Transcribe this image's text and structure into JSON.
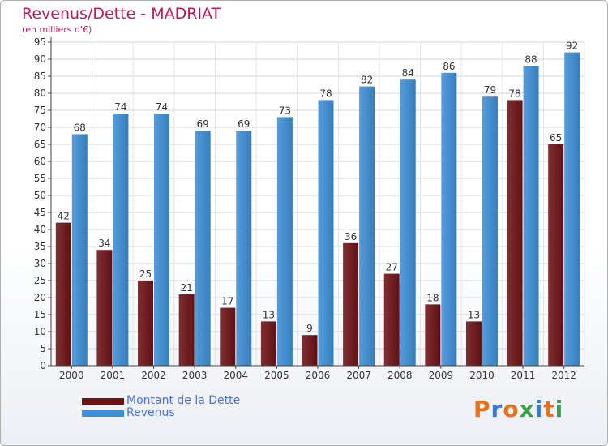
{
  "header": {
    "title": "Revenus/Dette - MADRIAT",
    "subtitle": "(en milliers d'€)"
  },
  "colors": {
    "title": "#c2185b",
    "dette": "#6e1216",
    "revenus": "#3d8fd6",
    "legend_text": "#4a6fe0"
  },
  "chart_data": {
    "type": "bar",
    "title": "Revenus/Dette - MADRIAT",
    "subtitle": "(en milliers d'€)",
    "categories": [
      "2000",
      "2001",
      "2002",
      "2003",
      "2004",
      "2005",
      "2006",
      "2007",
      "2008",
      "2009",
      "2010",
      "2011",
      "2012"
    ],
    "series": [
      {
        "name": "Montant de la Dette",
        "color": "#6e1216",
        "values": [
          42,
          34,
          25,
          21,
          17,
          13,
          9,
          36,
          27,
          18,
          13,
          78,
          65
        ]
      },
      {
        "name": "Revenus",
        "color": "#3d8fd6",
        "values": [
          68,
          74,
          74,
          69,
          69,
          73,
          78,
          82,
          84,
          86,
          79,
          88,
          92
        ]
      }
    ],
    "ylim": [
      0,
      95
    ],
    "yticks": [
      0,
      5,
      10,
      15,
      20,
      25,
      30,
      35,
      40,
      45,
      50,
      55,
      60,
      65,
      70,
      75,
      80,
      85,
      90,
      95
    ],
    "grid": true,
    "legend_placement": "bottom-left"
  },
  "legend": {
    "items": [
      {
        "label": "Montant de la Dette",
        "color": "#6e1216"
      },
      {
        "label": "Revenus",
        "color": "#3d8fd6"
      }
    ]
  },
  "logo": {
    "text": "Proxiti",
    "letter_colors": [
      "#e8711a",
      "#3a78d0",
      "#e8711a",
      "#3aa04a",
      "#3a78d0",
      "#e8711a",
      "#3aa04a"
    ]
  }
}
